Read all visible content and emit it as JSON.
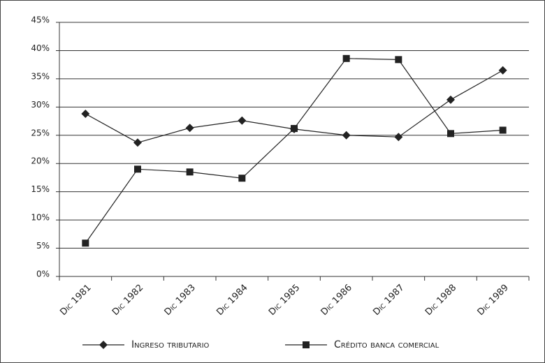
{
  "chart_data": {
    "type": "line",
    "categories": [
      "Dic 1981",
      "Dic 1982",
      "Dic 1983",
      "Dic 1984",
      "Dic 1985",
      "Dic 1986",
      "Dic 1987",
      "Dic 1988",
      "Dic 1989"
    ],
    "series": [
      {
        "name": "Ingreso tributario",
        "color": "#222222",
        "marker": "diamond",
        "values": [
          28.8,
          23.7,
          26.3,
          27.6,
          26.1,
          25.0,
          24.7,
          31.3,
          36.5
        ]
      },
      {
        "name": "Crédito banca comercial",
        "color": "#222222",
        "marker": "square",
        "values": [
          5.9,
          19.0,
          18.5,
          17.4,
          26.2,
          38.6,
          38.4,
          25.3,
          25.9
        ]
      }
    ],
    "ylim": [
      0,
      45
    ],
    "yticks": [
      {
        "value": 0,
        "label": "0%"
      },
      {
        "value": 5,
        "label": "5%"
      },
      {
        "value": 10,
        "label": "10%"
      },
      {
        "value": 15,
        "label": "15%"
      },
      {
        "value": 20,
        "label": "20%"
      },
      {
        "value": 25,
        "label": "25%"
      },
      {
        "value": 30,
        "label": "30%"
      },
      {
        "value": 35,
        "label": "35%"
      },
      {
        "value": 40,
        "label": "40%"
      },
      {
        "value": 45,
        "label": "45%"
      }
    ],
    "grid": true,
    "legend": "bottom"
  }
}
